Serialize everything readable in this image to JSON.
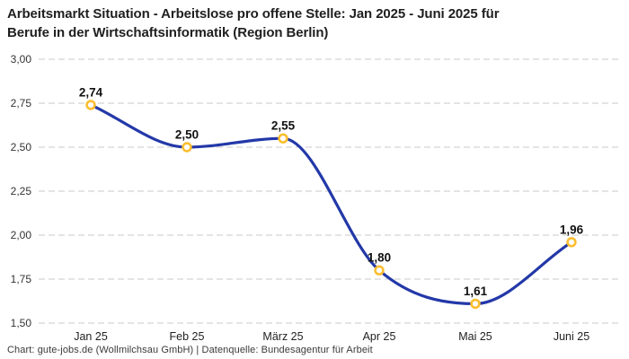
{
  "header": {
    "title_line1": "Arbeitsmarkt Situation - Arbeitslose pro offene Stelle: Jan 2025 - Juni 2025 für",
    "title_line2": "Berufe in der Wirtschaftsinformatik (Region Berlin)"
  },
  "footer": {
    "credit": "Chart: gute-jobs.de (Wollmilchsau GmbH) | Datenquelle: Bundesagentur für Arbeit"
  },
  "chart_data": {
    "type": "line",
    "title": "Arbeitsmarkt Situation - Arbeitslose pro offene Stelle: Jan 2025 - Juni 2025 für Berufe in der Wirtschaftsinformatik (Region Berlin)",
    "categories": [
      "Jan 25",
      "Feb 25",
      "März 25",
      "Apr 25",
      "Mai 25",
      "Juni 25"
    ],
    "values": [
      2.74,
      2.5,
      2.55,
      1.8,
      1.61,
      1.96
    ],
    "value_labels": [
      "2,74",
      "2,50",
      "2,55",
      "1,80",
      "1,61",
      "1,96"
    ],
    "y_ticks": [
      1.5,
      1.75,
      2.0,
      2.25,
      2.5,
      2.75,
      3.0
    ],
    "y_tick_labels": [
      "1,50",
      "1,75",
      "2,00",
      "2,25",
      "2,50",
      "2,75",
      "3,00"
    ],
    "ylim": [
      1.5,
      3.0
    ],
    "xlabel": "",
    "ylabel": "",
    "legend": "none",
    "grid": "horizontal-dashed",
    "line_style": "smooth",
    "colors": {
      "line": "#2338a8",
      "marker_ring": "#fbbe30",
      "marker_fill": "#ffffff",
      "gridline": "#c9c9c9",
      "tick_text": "#333333",
      "label_text": "#111111"
    }
  }
}
